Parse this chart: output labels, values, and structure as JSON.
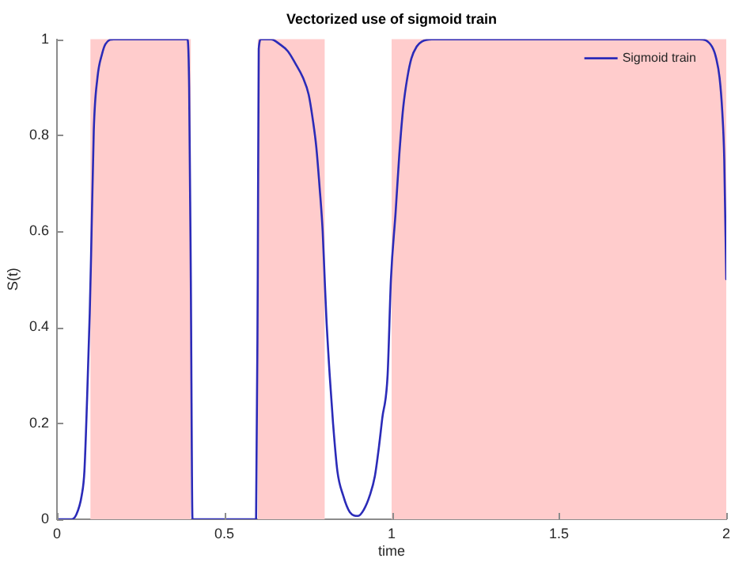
{
  "chart_data": {
    "type": "line",
    "title": "Vectorized use of sigmoid train",
    "xlabel": "time",
    "ylabel": "S(t)",
    "x": [
      0,
      0.03,
      0.043,
      0.058,
      0.074,
      0.082,
      0.09,
      0.098,
      0.102,
      0.11,
      0.121,
      0.135,
      0.145,
      0.17,
      0.39,
      0.395,
      0.4,
      0.405,
      0.595,
      0.6,
      0.603,
      0.61,
      0.64,
      0.665,
      0.69,
      0.712,
      0.735,
      0.752,
      0.765,
      0.775,
      0.785,
      0.794,
      0.8,
      0.805,
      0.815,
      0.825,
      0.838,
      0.855,
      0.875,
      0.9,
      0.917,
      0.935,
      0.95,
      0.962,
      0.972,
      0.988,
      0.998,
      1.012,
      1.023,
      1.035,
      1.047,
      1.059,
      1.075,
      1.09,
      1.12,
      1.92,
      1.957,
      1.97,
      1.98,
      1.988,
      1.994,
      2
    ],
    "series": [
      {
        "name": "Sigmoid train",
        "color": "#2b2bb8",
        "values": [
          0,
          0,
          0,
          0.01,
          0.05,
          0.1,
          0.25,
          0.43,
          0.55,
          0.81,
          0.92,
          0.97,
          0.99,
          1,
          1,
          0.9,
          0.5,
          0,
          0,
          0.5,
          0.98,
          1,
          1,
          0.99,
          0.975,
          0.95,
          0.92,
          0.885,
          0.83,
          0.775,
          0.69,
          0.6,
          0.5,
          0.42,
          0.3,
          0.2,
          0.1,
          0.05,
          0.015,
          0.007,
          0.02,
          0.05,
          0.09,
          0.15,
          0.21,
          0.3,
          0.5,
          0.64,
          0.76,
          0.86,
          0.92,
          0.96,
          0.985,
          0.995,
          1,
          1,
          0.985,
          0.96,
          0.92,
          0.85,
          0.75,
          0.5
        ]
      }
    ],
    "xlim": [
      0,
      2
    ],
    "xticks": [
      0,
      0.5,
      1,
      1.5,
      2
    ],
    "ylim": [
      0,
      1
    ],
    "yticks": [
      0,
      0.2,
      0.4,
      0.6,
      0.8,
      1
    ],
    "bands": [
      {
        "axis": "x",
        "from": 0.1,
        "to": 0.4,
        "color": "#ffcccc"
      },
      {
        "axis": "x",
        "from": 0.6,
        "to": 0.8,
        "color": "#ffcccc"
      },
      {
        "axis": "x",
        "from": 1,
        "to": 2,
        "color": "#ffcccc"
      }
    ],
    "grid": false,
    "legend": "top right",
    "marker": "none",
    "line_style": "solid"
  }
}
